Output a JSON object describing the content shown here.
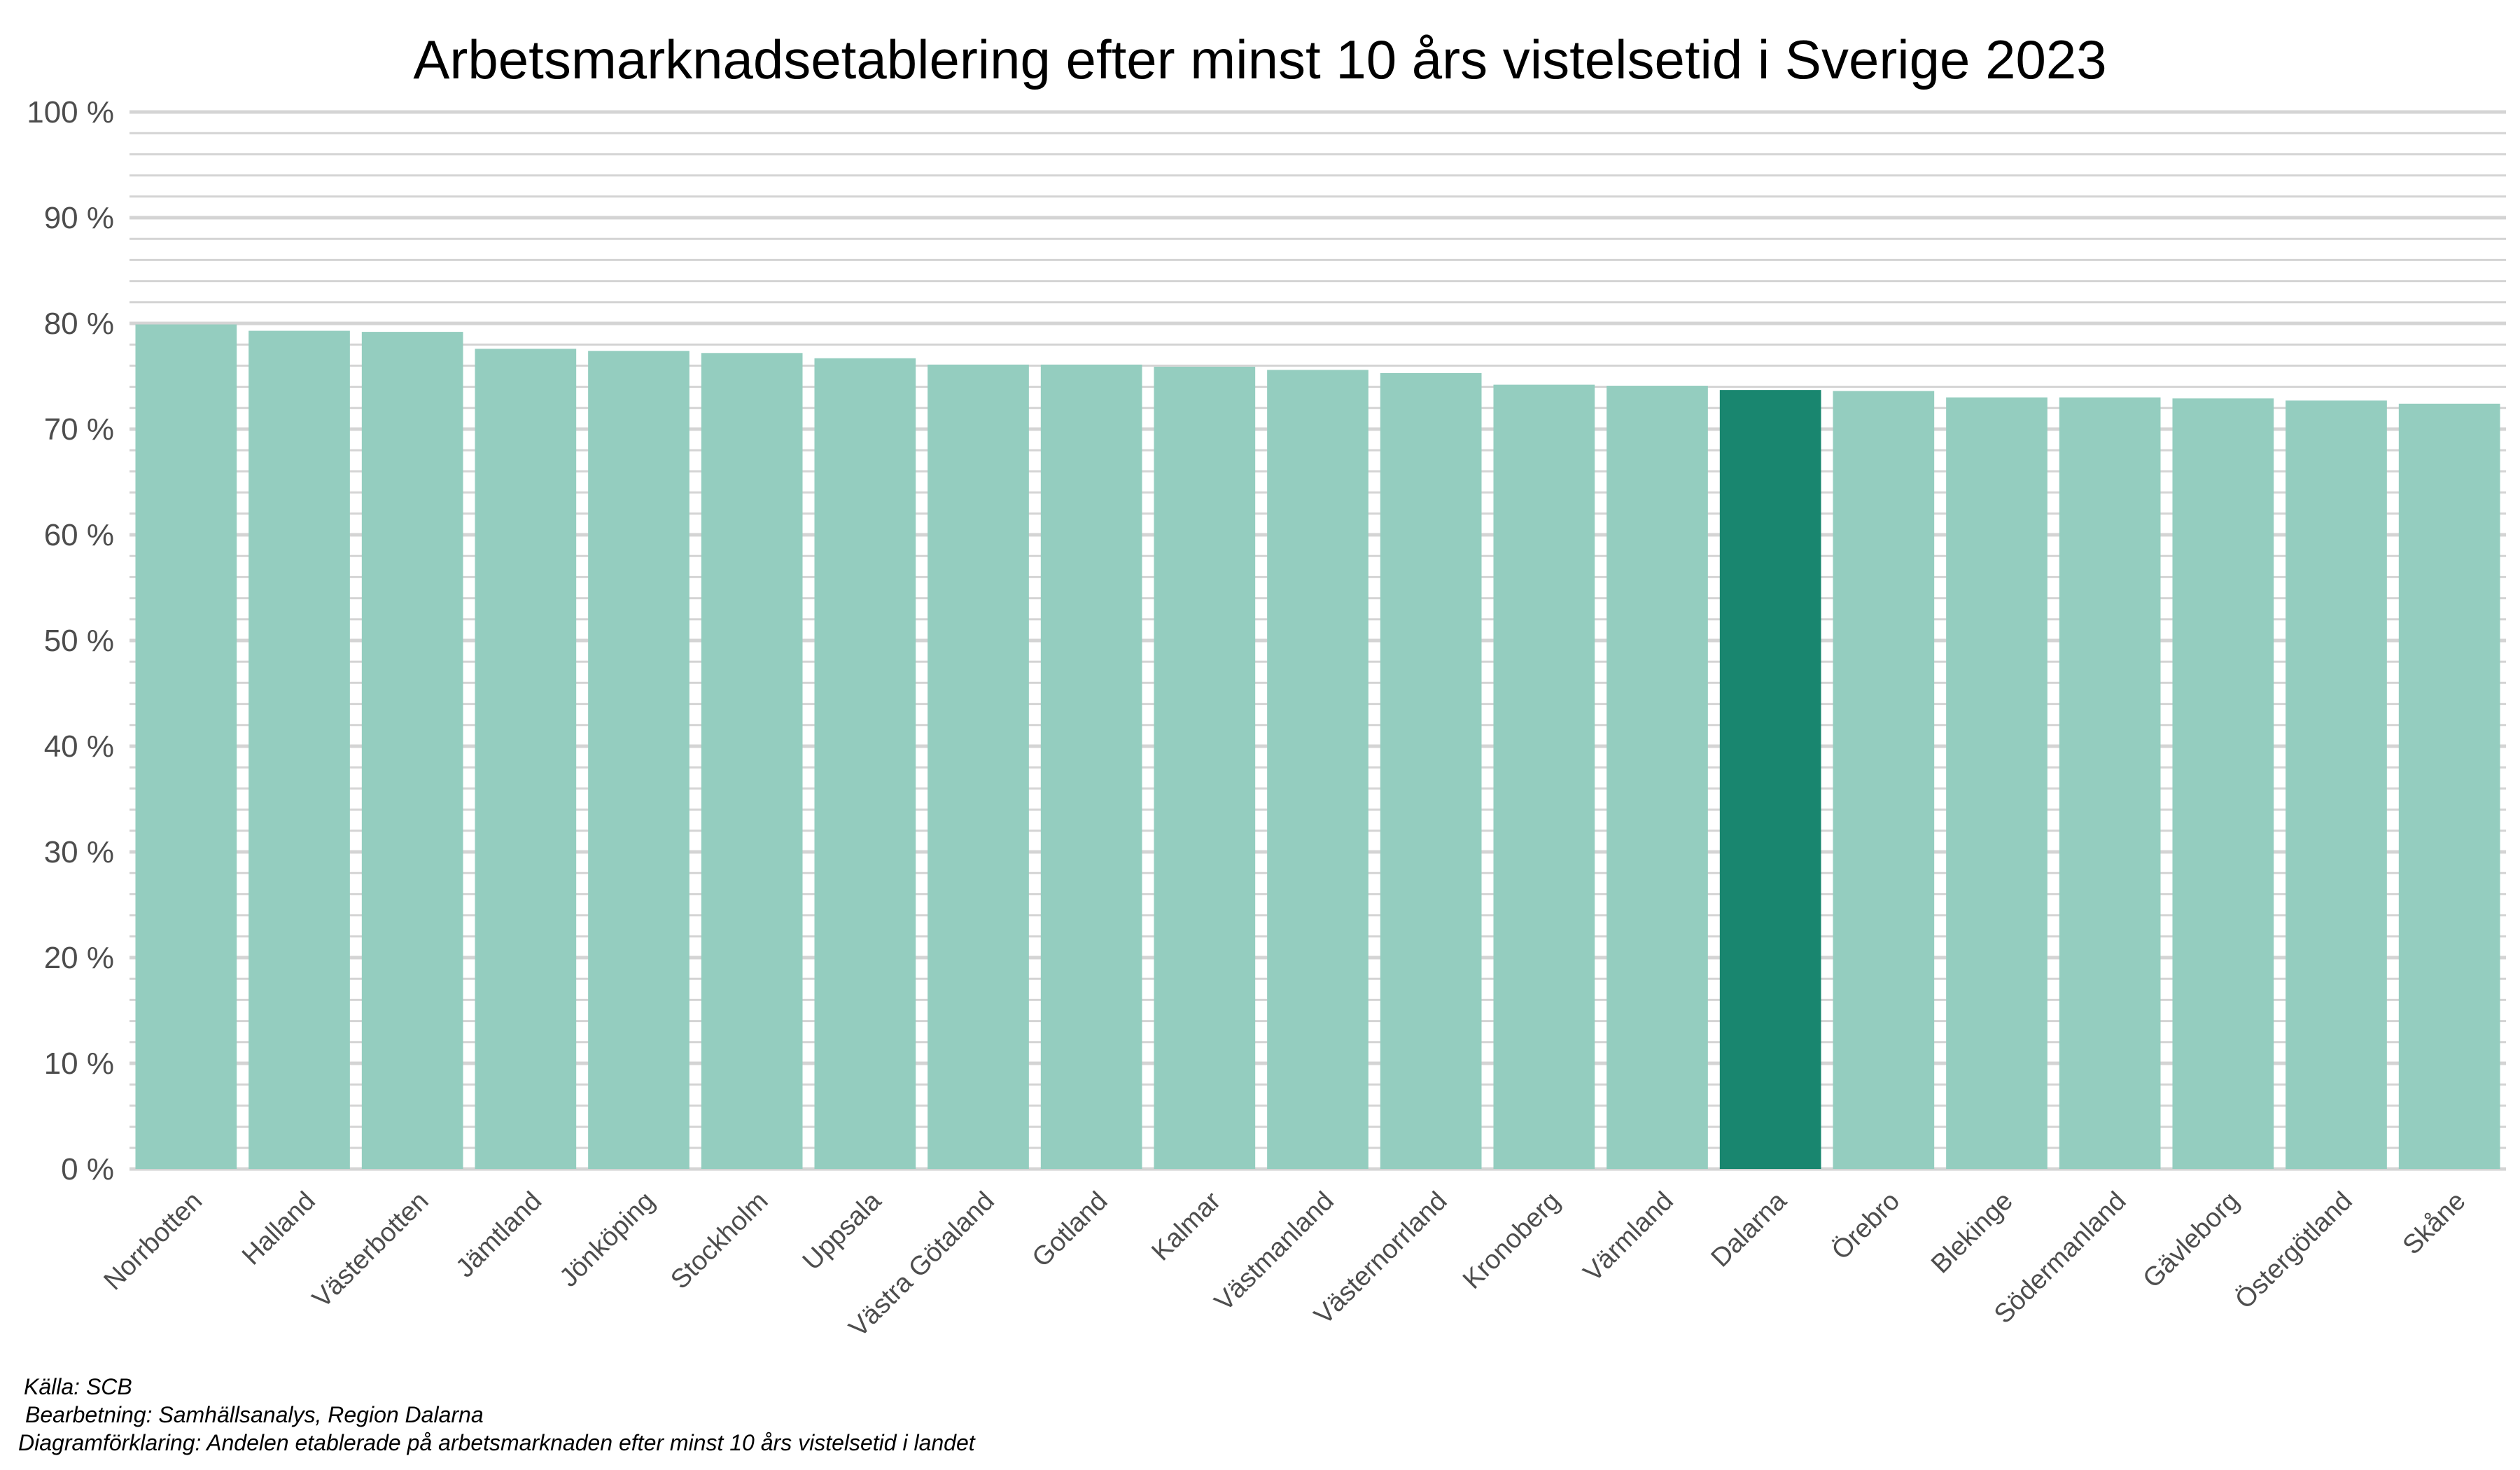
{
  "chart_data": {
    "type": "bar",
    "title": "Arbetsmarknadsetablering efter minst 10 års vistelsetid i Sverige 2023",
    "xlabel": "",
    "ylabel": "",
    "ylim": [
      0,
      100
    ],
    "yticks": [
      0,
      10,
      20,
      30,
      40,
      50,
      60,
      70,
      80,
      90,
      100
    ],
    "ytick_suffix": " %",
    "grid": true,
    "categories": [
      "Norrbotten",
      "Halland",
      "Västerbotten",
      "Jämtland",
      "Jönköping",
      "Stockholm",
      "Uppsala",
      "Västra Götaland",
      "Gotland",
      "Kalmar",
      "Västmanland",
      "Västernorrland",
      "Kronoberg",
      "Värmland",
      "Dalarna",
      "Örebro",
      "Blekinge",
      "Södermanland",
      "Gävleborg",
      "Östergötland",
      "Skåne"
    ],
    "values": [
      79.9,
      79.3,
      79.2,
      77.6,
      77.4,
      77.2,
      76.7,
      76.1,
      76.1,
      75.9,
      75.6,
      75.3,
      74.2,
      74.1,
      73.7,
      73.6,
      73.0,
      73.0,
      72.9,
      72.7,
      72.4
    ],
    "highlight": "Dalarna",
    "colors": {
      "default": "#94cdbf",
      "highlight": "#19866f"
    }
  },
  "footer": {
    "source": "Källa: SCB",
    "processing": "Bearbetning: Samhällsanalys, Region Dalarna",
    "explanation": "Diagramförklaring: Andelen etablerade på arbetsmarknaden efter minst 10 års vistelsetid i landet"
  }
}
